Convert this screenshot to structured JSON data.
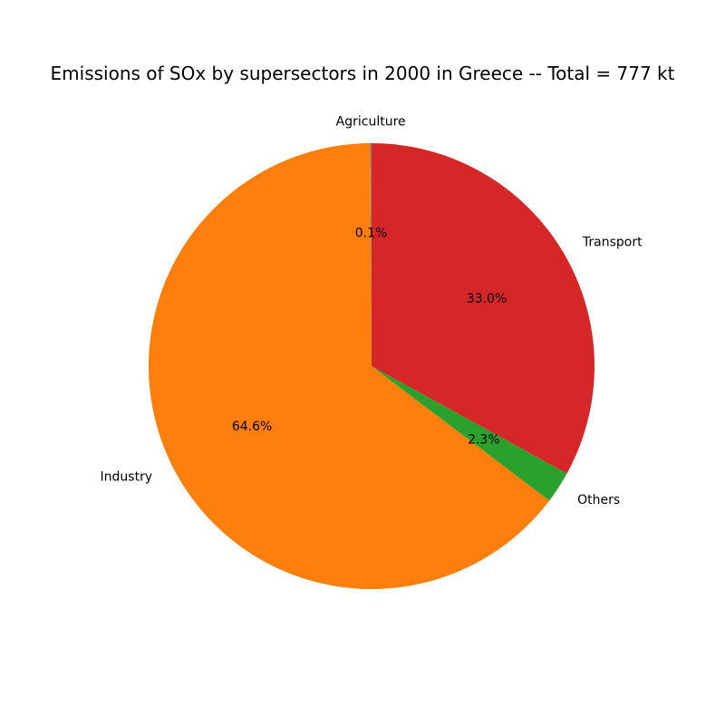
{
  "chart_data": {
    "type": "pie",
    "title": "Emissions of SOx by supersectors in 2000 in Greece -- Total = 777 kt",
    "start_angle_deg": 90,
    "direction": "counterclockwise",
    "legend": "none",
    "slices": [
      {
        "label": "Agriculture",
        "value": 0.1,
        "pct_label": "0.1%",
        "color": "#7f7f7f"
      },
      {
        "label": "Industry",
        "value": 64.6,
        "pct_label": "64.6%",
        "color": "#ff7f0e"
      },
      {
        "label": "Others",
        "value": 2.3,
        "pct_label": "2.3%",
        "color": "#2ca02c"
      },
      {
        "label": "Transport",
        "value": 33.0,
        "pct_label": "33.0%",
        "color": "#d62728"
      }
    ]
  }
}
